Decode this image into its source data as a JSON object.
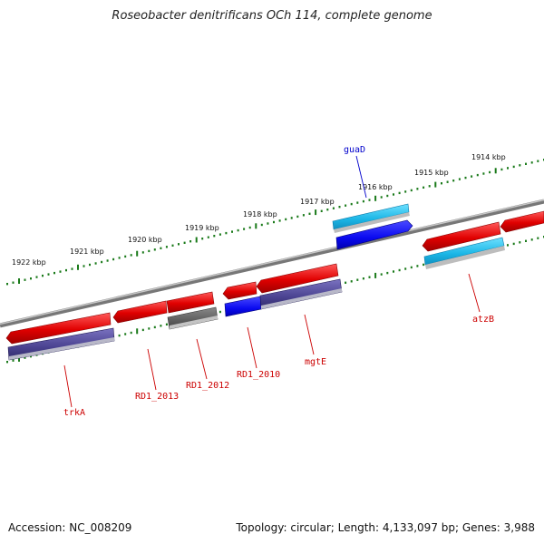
{
  "title": "Roseobacter denitrificans OCh 114, complete genome",
  "footer": {
    "accession": "Accession: NC_008209",
    "summary": "Topology: circular; Length: 4,133,097 bp; Genes: 3,988"
  },
  "ticks": [
    "1922 kbp",
    "1921 kbp",
    "1920 kbp",
    "1919 kbp",
    "1918 kbp",
    "1917 kbp",
    "1916 kbp",
    "1915 kbp",
    "1914 kbp"
  ],
  "gene_labels": [
    {
      "name": "guaD",
      "color": "#0000cc"
    },
    {
      "name": "trkA",
      "color": "#cc0000"
    },
    {
      "name": "RD1_2013",
      "color": "#cc0000"
    },
    {
      "name": "RD1_2012",
      "color": "#cc0000"
    },
    {
      "name": "RD1_2010",
      "color": "#cc0000"
    },
    {
      "name": "mgtE",
      "color": "#cc0000"
    },
    {
      "name": "atzB",
      "color": "#cc0000"
    }
  ],
  "colors": {
    "gene_red": "#e00000",
    "gene_cyan": "#1bb6e6",
    "gene_blue": "#0a0af0",
    "gene_purple": "#4a4290",
    "gene_grey": "#666666",
    "tick_green": "#1a7a1a",
    "backbone": "#8a8a8a"
  }
}
